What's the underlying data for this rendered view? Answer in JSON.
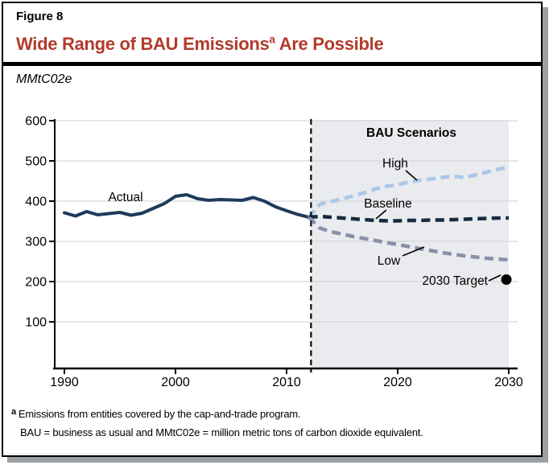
{
  "figure": {
    "label": "Figure 8",
    "title_main": "Wide Range of BAU Emissions",
    "title_superscript": "a",
    "title_suffix": " Are Possible",
    "title_color": "#b23b2b",
    "unit_label": "MMtC02e"
  },
  "chart_data": {
    "type": "line",
    "ylabel": "MMtC02e",
    "ylim": [
      0,
      600
    ],
    "y_ticks": [
      600,
      500,
      400,
      300,
      200,
      100
    ],
    "x_ticks": [
      1990,
      2000,
      2010,
      2020,
      2030
    ],
    "grid": true,
    "grid_color": "#d5d7da",
    "scenario_start_year": 2012.2,
    "scenario_region_fill": "#e9ebee",
    "series": [
      {
        "name": "Actual",
        "style": "solid",
        "color": "#1e3a5c",
        "points": [
          [
            1990,
            371
          ],
          [
            1991,
            363
          ],
          [
            1992,
            374
          ],
          [
            1993,
            366
          ],
          [
            1994,
            369
          ],
          [
            1995,
            372
          ],
          [
            1996,
            365
          ],
          [
            1997,
            370
          ],
          [
            1998,
            382
          ],
          [
            1999,
            394
          ],
          [
            2000,
            412
          ],
          [
            2001,
            416
          ],
          [
            2002,
            406
          ],
          [
            2003,
            402
          ],
          [
            2004,
            404
          ],
          [
            2005,
            403
          ],
          [
            2006,
            402
          ],
          [
            2007,
            409
          ],
          [
            2008,
            400
          ],
          [
            2009,
            386
          ],
          [
            2010,
            376
          ],
          [
            2011,
            367
          ],
          [
            2012,
            360
          ]
        ]
      },
      {
        "name": "High",
        "style": "dashed",
        "color": "#a9c7e8",
        "points": [
          [
            2012,
            360
          ],
          [
            2013,
            392
          ],
          [
            2014,
            399
          ],
          [
            2015,
            405
          ],
          [
            2016,
            413
          ],
          [
            2017,
            421
          ],
          [
            2018,
            430
          ],
          [
            2019,
            437
          ],
          [
            2020,
            441
          ],
          [
            2021,
            447
          ],
          [
            2022,
            452
          ],
          [
            2023,
            455
          ],
          [
            2024,
            459
          ],
          [
            2025,
            462
          ],
          [
            2026,
            459
          ],
          [
            2027,
            465
          ],
          [
            2028,
            472
          ],
          [
            2029,
            479
          ],
          [
            2030,
            485
          ]
        ]
      },
      {
        "name": "Baseline",
        "style": "dashed",
        "color": "#172a40",
        "points": [
          [
            2012,
            360
          ],
          [
            2013,
            362
          ],
          [
            2014,
            360
          ],
          [
            2015,
            358
          ],
          [
            2016,
            356
          ],
          [
            2017,
            354
          ],
          [
            2018,
            352
          ],
          [
            2019,
            351
          ],
          [
            2020,
            351
          ],
          [
            2021,
            352
          ],
          [
            2022,
            352
          ],
          [
            2023,
            353
          ],
          [
            2024,
            353
          ],
          [
            2025,
            354
          ],
          [
            2026,
            355
          ],
          [
            2027,
            356
          ],
          [
            2028,
            357
          ],
          [
            2029,
            358
          ],
          [
            2030,
            358
          ]
        ]
      },
      {
        "name": "Low",
        "style": "dashed",
        "color": "#8a8fa6",
        "points": [
          [
            2012,
            360
          ],
          [
            2013,
            333
          ],
          [
            2014,
            324
          ],
          [
            2015,
            318
          ],
          [
            2016,
            312
          ],
          [
            2017,
            307
          ],
          [
            2018,
            302
          ],
          [
            2019,
            297
          ],
          [
            2020,
            292
          ],
          [
            2021,
            287
          ],
          [
            2022,
            282
          ],
          [
            2023,
            277
          ],
          [
            2024,
            272
          ],
          [
            2025,
            268
          ],
          [
            2026,
            264
          ],
          [
            2027,
            261
          ],
          [
            2028,
            258
          ],
          [
            2029,
            256
          ],
          [
            2030,
            254
          ]
        ]
      }
    ],
    "target_point": {
      "label": "2030 Target",
      "year": 2030,
      "value": 205
    },
    "annotations": {
      "region_label": "BAU Scenarios",
      "actual_label": "Actual",
      "high_label": "High",
      "baseline_label": "Baseline",
      "low_label": "Low",
      "target_label": "2030 Target"
    }
  },
  "footnotes": {
    "sup": "a",
    "line1": "Emissions from entities covered by the cap-and-trade program.",
    "line2": "BAU = business as usual and MMtC02e = million metric tons of carbon dioxide equivalent."
  }
}
